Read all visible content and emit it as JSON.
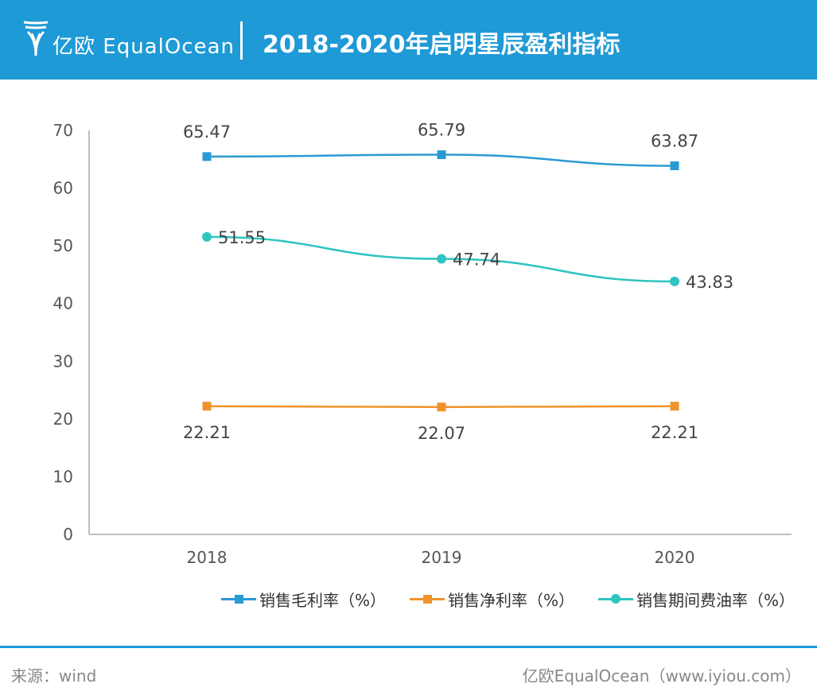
{
  "header": {
    "brand": "亿欧 EqualOcean",
    "title": "2018-2020年启明星辰盈利指标"
  },
  "colors": {
    "header_bg": "#1e9ad6",
    "series": [
      "#2a9ad4",
      "#f0922b",
      "#2ec4c0"
    ]
  },
  "chart_data": {
    "type": "line",
    "x": [
      "2018",
      "2019",
      "2020"
    ],
    "ylim": [
      0,
      70
    ],
    "yticks": [
      0,
      10,
      20,
      30,
      40,
      50,
      60,
      70
    ],
    "grid": false,
    "legend_position": "bottom",
    "series": [
      {
        "name": "销售毛利率（%）",
        "values": [
          65.47,
          65.79,
          63.87
        ],
        "marker": "square",
        "labels": [
          "65.47",
          "65.79",
          "63.87"
        ],
        "label_position": "above"
      },
      {
        "name": "销售净利率（%）",
        "values": [
          22.21,
          22.07,
          22.21
        ],
        "marker": "square",
        "labels": [
          "22.21",
          "22.07",
          "22.21"
        ],
        "label_position": "below"
      },
      {
        "name": "销售期间费油率（%）",
        "values": [
          51.55,
          47.74,
          43.83
        ],
        "marker": "circle",
        "labels": [
          "51.55",
          "47.74",
          "43.83"
        ],
        "label_position": "right"
      }
    ]
  },
  "footer": {
    "source": "来源：wind",
    "watermark": "亿欧EqualOcean（www.iyiou.com）"
  }
}
